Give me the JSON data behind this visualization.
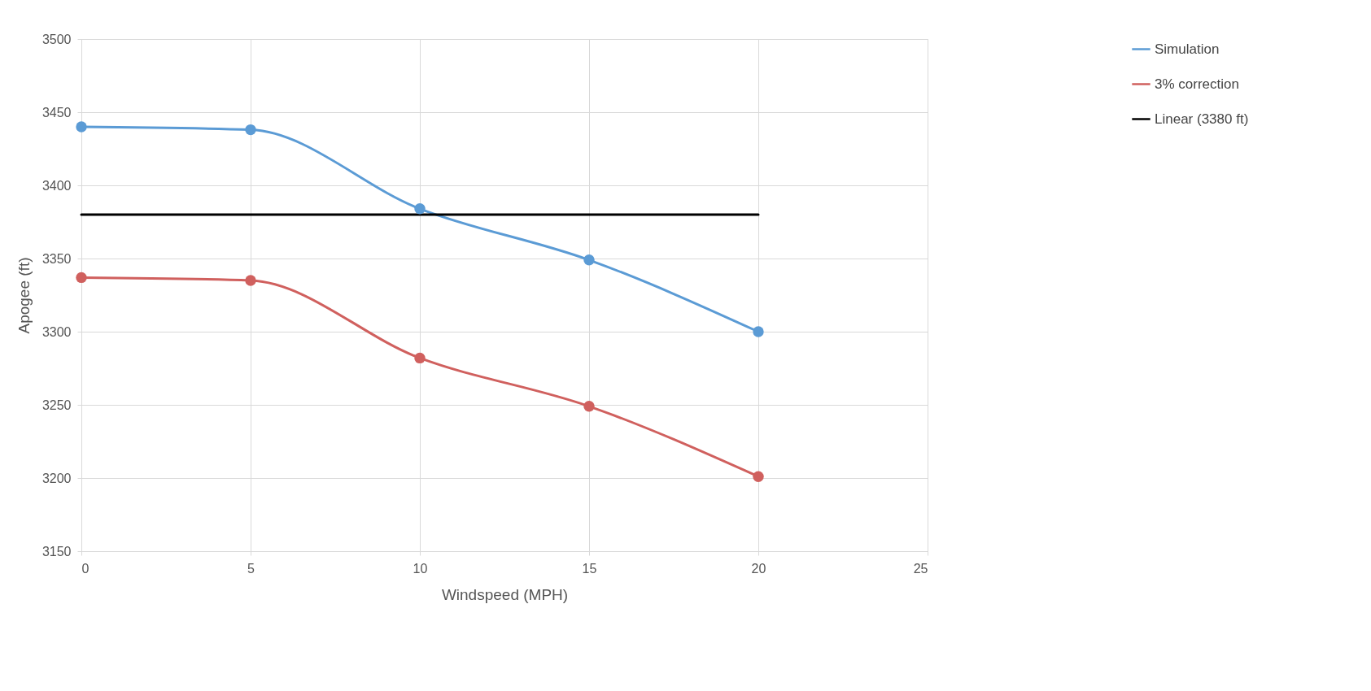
{
  "chart_data": {
    "type": "line",
    "xlabel": "Windspeed (MPH)",
    "ylabel": "Apogee (ft)",
    "x": [
      0,
      5,
      10,
      15,
      20
    ],
    "series": [
      {
        "name": "Simulation",
        "color": "#5b9bd5",
        "values": [
          3440,
          3438,
          3384,
          3349,
          3300
        ],
        "marker": "circle"
      },
      {
        "name": "3% correction",
        "color": "#d0605e",
        "values": [
          3337,
          3335,
          3282,
          3249,
          3201
        ],
        "marker": "circle"
      },
      {
        "name": "Linear (3380 ft)",
        "color": "#000000",
        "x": [
          0,
          20
        ],
        "values": [
          3380,
          3380
        ],
        "marker": "none"
      }
    ],
    "xlim": [
      0,
      25
    ],
    "xticks": [
      0,
      5,
      10,
      15,
      20,
      25
    ],
    "ylim": [
      3150,
      3500
    ],
    "yticks": [
      3150,
      3200,
      3250,
      3300,
      3350,
      3400,
      3450,
      3500
    ],
    "grid": true,
    "legend": "right",
    "line_style": "solid"
  }
}
